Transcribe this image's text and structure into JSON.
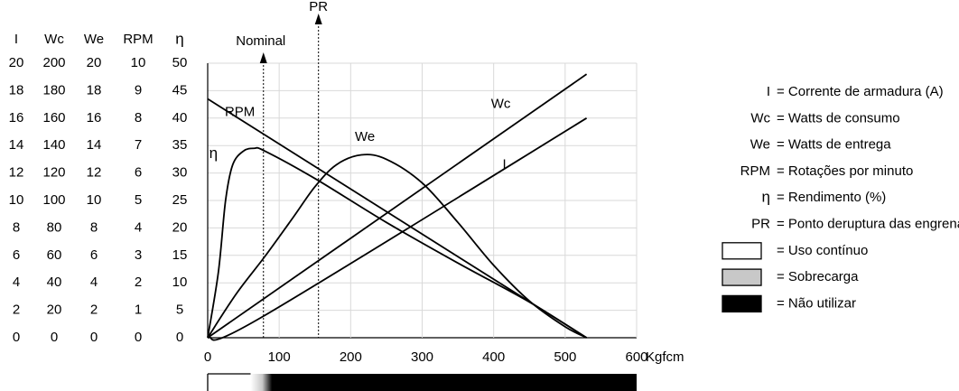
{
  "chart_data": {
    "type": "line",
    "x_axis": {
      "min": 0,
      "max": 600,
      "ticks": [
        0,
        100,
        200,
        300,
        400,
        500,
        600
      ],
      "unit": "Kgfcm"
    },
    "left_scales": {
      "headers": [
        "I",
        "Wc",
        "We",
        "RPM",
        "η"
      ],
      "columns": [
        [
          20,
          18,
          16,
          14,
          12,
          10,
          8,
          6,
          4,
          2,
          0
        ],
        [
          200,
          180,
          160,
          140,
          120,
          100,
          80,
          60,
          40,
          20,
          0
        ],
        [
          20,
          18,
          16,
          14,
          12,
          10,
          8,
          6,
          4,
          2,
          0
        ],
        [
          10,
          9,
          8,
          7,
          6,
          5,
          4,
          3,
          2,
          1,
          0
        ],
        [
          50,
          45,
          40,
          35,
          30,
          25,
          20,
          15,
          10,
          5,
          0
        ]
      ]
    },
    "plot_scale": {
      "ymin": 0,
      "ymax": 50,
      "scale_label": "η"
    },
    "series": [
      {
        "name": "Wc",
        "points": [
          [
            0,
            0
          ],
          [
            530,
            48
          ]
        ]
      },
      {
        "name": "I",
        "points": [
          [
            0,
            0
          ],
          [
            75,
            3.7
          ],
          [
            530,
            40
          ]
        ]
      },
      {
        "name": "RPM",
        "points": [
          [
            0,
            43.5
          ],
          [
            530,
            0
          ]
        ]
      },
      {
        "name": "η",
        "points": [
          [
            0,
            0
          ],
          [
            15,
            12
          ],
          [
            25,
            25
          ],
          [
            35,
            31.5
          ],
          [
            50,
            34
          ],
          [
            65,
            34.5
          ],
          [
            80,
            34
          ],
          [
            150,
            29
          ],
          [
            250,
            21
          ],
          [
            350,
            13.6
          ],
          [
            450,
            6.5
          ],
          [
            530,
            0
          ]
        ]
      },
      {
        "name": "We",
        "points": [
          [
            0,
            0
          ],
          [
            40,
            8
          ],
          [
            80,
            14.8
          ],
          [
            120,
            22
          ],
          [
            150,
            27.5
          ],
          [
            180,
            31.5
          ],
          [
            215,
            33.3
          ],
          [
            250,
            32.5
          ],
          [
            300,
            28.2
          ],
          [
            350,
            21
          ],
          [
            400,
            13.2
          ],
          [
            450,
            6.7
          ],
          [
            500,
            2
          ],
          [
            530,
            0
          ]
        ]
      }
    ],
    "curve_labels": [
      {
        "name": "RPM",
        "x": 45,
        "y": 41
      },
      {
        "name": "Wc",
        "x": 410,
        "y": 42.5
      },
      {
        "name": "We",
        "x": 220,
        "y": 36.5
      },
      {
        "name": "I",
        "x": 415,
        "y": 31.5
      },
      {
        "name": "η",
        "x": 8,
        "y": 33.5
      }
    ],
    "markers": [
      {
        "name": "Nominal",
        "x": 78
      },
      {
        "name": "PR",
        "x": 155
      }
    ],
    "legend": [
      {
        "symbol": "I",
        "text": "Corrente de armadura (A)"
      },
      {
        "symbol": "Wc",
        "text": "Watts de consumo"
      },
      {
        "symbol": "We",
        "text": "Watts de entrega"
      },
      {
        "symbol": "RPM",
        "text": "Rotações por minuto"
      },
      {
        "symbol": "η",
        "text": "Rendimento (%)"
      },
      {
        "symbol": "PR",
        "text": "Ponto deruptura das engrenagens"
      },
      {
        "swatch": "#ffffff",
        "text": "Uso contínuo"
      },
      {
        "swatch": "#c8c8c8",
        "text": "Sobrecarga"
      },
      {
        "swatch": "#000000",
        "text": "Não utilizar"
      }
    ],
    "usage_bar": {
      "continuous_color": "#ffffff",
      "overload_color": "#c8c8c8",
      "do_not_use_color": "#000000",
      "continuous_until": 60,
      "overload_until": 90
    },
    "grid": true
  }
}
